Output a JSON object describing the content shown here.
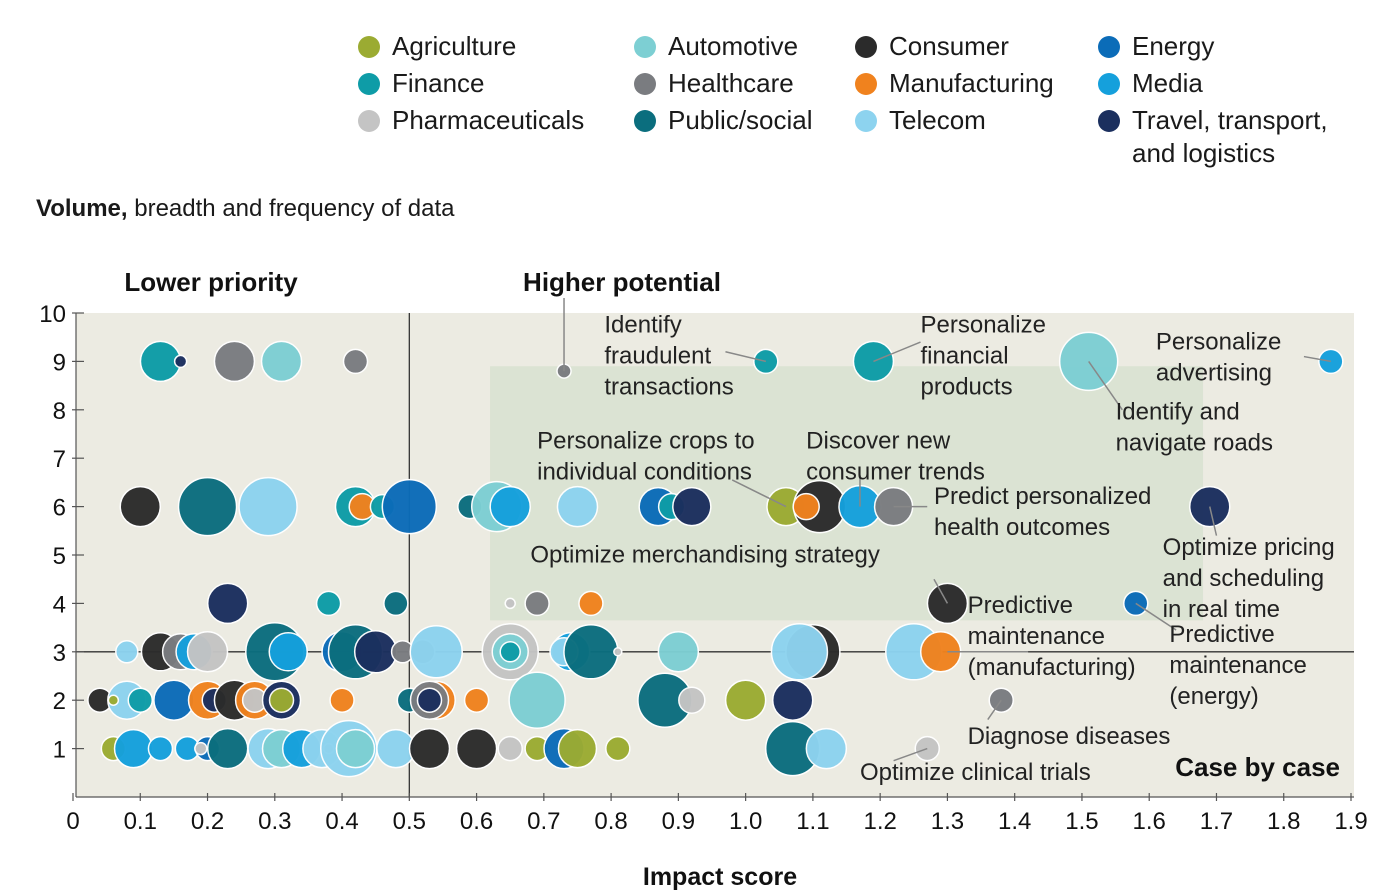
{
  "legend": [
    {
      "name": "Agriculture",
      "color": "#9bab32"
    },
    {
      "name": "Automotive",
      "color": "#7dcfd3"
    },
    {
      "name": "Consumer",
      "color": "#2b2b2b"
    },
    {
      "name": "Energy",
      "color": "#0b6cb8"
    },
    {
      "name": "Finance",
      "color": "#0e9ca7"
    },
    {
      "name": "Healthcare",
      "color": "#7a7c80"
    },
    {
      "name": "Manufacturing",
      "color": "#f0821e"
    },
    {
      "name": "Media",
      "color": "#15a0dc"
    },
    {
      "name": "Pharmaceuticals",
      "color": "#c4c4c4"
    },
    {
      "name": "Public/social",
      "color": "#0b6e7e"
    },
    {
      "name": "Telecom",
      "color": "#8dd3ef"
    },
    {
      "name": "Travel, transport, and logistics",
      "color": "#1b2f5e",
      "lines": [
        "Travel, transport,",
        "and logistics"
      ]
    }
  ],
  "chart_data": {
    "type": "scatter",
    "title": "",
    "ylabel_bold": "Volume,",
    "ylabel_rest": " breadth and frequency of data",
    "xlabel": "Impact score",
    "xlim": [
      0,
      1.9
    ],
    "ylim": [
      0,
      10
    ],
    "x_ticks": [
      "0",
      "0.1",
      "0.2",
      "0.3",
      "0.4",
      "0.5",
      "0.6",
      "0.7",
      "0.8",
      "0.9",
      "1.0",
      "1.1",
      "1.2",
      "1.3",
      "1.4",
      "1.5",
      "1.6",
      "1.7",
      "1.8",
      "1.9"
    ],
    "y_ticks": [
      "1",
      "2",
      "3",
      "4",
      "5",
      "6",
      "7",
      "8",
      "9",
      "10"
    ],
    "quadrant_labels": {
      "top_left": "Lower priority",
      "top_right": "Higher potential",
      "bottom_right": "Case by case"
    },
    "reference_lines": {
      "x": 0.5,
      "y": 3
    },
    "points": [
      {
        "x": 0.13,
        "y": 9,
        "r": 20,
        "c": "Finance"
      },
      {
        "x": 0.16,
        "y": 9,
        "r": 6,
        "c": "Travel, transport, and logistics"
      },
      {
        "x": 0.24,
        "y": 9,
        "r": 20,
        "c": "Healthcare"
      },
      {
        "x": 0.31,
        "y": 9,
        "r": 20,
        "c": "Automotive"
      },
      {
        "x": 0.42,
        "y": 9,
        "r": 12,
        "c": "Healthcare"
      },
      {
        "x": 0.1,
        "y": 6,
        "r": 20,
        "c": "Consumer"
      },
      {
        "x": 0.2,
        "y": 6,
        "r": 29,
        "c": "Public/social"
      },
      {
        "x": 0.29,
        "y": 6,
        "r": 29,
        "c": "Telecom"
      },
      {
        "x": 0.42,
        "y": 6,
        "r": 20,
        "c": "Finance"
      },
      {
        "x": 0.43,
        "y": 6,
        "r": 13,
        "c": "Manufacturing"
      },
      {
        "x": 0.46,
        "y": 6,
        "r": 12,
        "c": "Finance"
      },
      {
        "x": 0.5,
        "y": 6,
        "r": 27,
        "c": "Energy"
      },
      {
        "x": 0.59,
        "y": 6,
        "r": 12,
        "c": "Public/social"
      },
      {
        "x": 0.63,
        "y": 6,
        "r": 25,
        "c": "Automotive"
      },
      {
        "x": 0.65,
        "y": 6,
        "r": 20,
        "c": "Media"
      },
      {
        "x": 0.75,
        "y": 6,
        "r": 20,
        "c": "Telecom"
      },
      {
        "x": 0.87,
        "y": 6,
        "r": 19,
        "c": "Energy"
      },
      {
        "x": 0.89,
        "y": 6,
        "r": 13,
        "c": "Finance"
      },
      {
        "x": 0.92,
        "y": 6,
        "r": 19,
        "c": "Travel, transport, and logistics"
      },
      {
        "x": 1.06,
        "y": 6,
        "r": 19,
        "c": "Agriculture"
      },
      {
        "x": 1.11,
        "y": 6,
        "r": 26,
        "c": "Consumer"
      },
      {
        "x": 1.09,
        "y": 6,
        "r": 13,
        "c": "Manufacturing"
      },
      {
        "x": 1.17,
        "y": 6,
        "r": 21,
        "c": "Media"
      },
      {
        "x": 1.22,
        "y": 6,
        "r": 19,
        "c": "Healthcare"
      },
      {
        "x": 1.69,
        "y": 6,
        "r": 20,
        "c": "Travel, transport, and logistics"
      },
      {
        "x": 1.03,
        "y": 9,
        "r": 12,
        "c": "Finance"
      },
      {
        "x": 1.19,
        "y": 9,
        "r": 20,
        "c": "Finance"
      },
      {
        "x": 1.51,
        "y": 9,
        "r": 29,
        "c": "Automotive"
      },
      {
        "x": 1.87,
        "y": 9,
        "r": 12,
        "c": "Media"
      },
      {
        "x": 0.73,
        "y": 8.8,
        "r": 7,
        "c": "Healthcare"
      },
      {
        "x": 0.23,
        "y": 4,
        "r": 20,
        "c": "Travel, transport, and logistics"
      },
      {
        "x": 0.38,
        "y": 4,
        "r": 12,
        "c": "Finance"
      },
      {
        "x": 0.48,
        "y": 4,
        "r": 12,
        "c": "Public/social"
      },
      {
        "x": 0.65,
        "y": 4,
        "r": 5,
        "c": "Pharmaceuticals"
      },
      {
        "x": 0.69,
        "y": 4,
        "r": 12,
        "c": "Healthcare"
      },
      {
        "x": 0.77,
        "y": 4,
        "r": 12,
        "c": "Manufacturing"
      },
      {
        "x": 1.3,
        "y": 4,
        "r": 20,
        "c": "Consumer"
      },
      {
        "x": 1.58,
        "y": 4,
        "r": 12,
        "c": "Energy"
      },
      {
        "x": 0.08,
        "y": 3,
        "r": 11,
        "c": "Telecom"
      },
      {
        "x": 0.13,
        "y": 3,
        "r": 19,
        "c": "Consumer"
      },
      {
        "x": 0.16,
        "y": 3,
        "r": 18,
        "c": "Healthcare"
      },
      {
        "x": 0.18,
        "y": 3,
        "r": 18,
        "c": "Media"
      },
      {
        "x": 0.2,
        "y": 3,
        "r": 20,
        "c": "Pharmaceuticals"
      },
      {
        "x": 0.3,
        "y": 3,
        "r": 29,
        "c": "Public/social"
      },
      {
        "x": 0.32,
        "y": 3,
        "r": 19,
        "c": "Media"
      },
      {
        "x": 0.4,
        "y": 3,
        "r": 20,
        "c": "Energy"
      },
      {
        "x": 0.42,
        "y": 3,
        "r": 27,
        "c": "Public/social"
      },
      {
        "x": 0.45,
        "y": 3,
        "r": 21,
        "c": "Travel, transport, and logistics"
      },
      {
        "x": 0.49,
        "y": 3,
        "r": 11,
        "c": "Healthcare"
      },
      {
        "x": 0.52,
        "y": 3,
        "r": 12,
        "c": "Healthcare"
      },
      {
        "x": 0.54,
        "y": 3,
        "r": 26,
        "c": "Telecom"
      },
      {
        "x": 0.65,
        "y": 3,
        "r": 28,
        "c": "Pharmaceuticals"
      },
      {
        "x": 0.65,
        "y": 3,
        "r": 18,
        "c": "Automotive"
      },
      {
        "x": 0.65,
        "y": 3,
        "r": 10,
        "c": "Finance"
      },
      {
        "x": 0.74,
        "y": 3,
        "r": 19,
        "c": "Media"
      },
      {
        "x": 0.73,
        "y": 3,
        "r": 14,
        "c": "Telecom"
      },
      {
        "x": 0.77,
        "y": 3,
        "r": 27,
        "c": "Public/social"
      },
      {
        "x": 0.81,
        "y": 3,
        "r": 4,
        "c": "Pharmaceuticals"
      },
      {
        "x": 0.9,
        "y": 3,
        "r": 20,
        "c": "Automotive"
      },
      {
        "x": 1.1,
        "y": 3,
        "r": 27,
        "c": "Consumer"
      },
      {
        "x": 1.08,
        "y": 3,
        "r": 28,
        "c": "Telecom"
      },
      {
        "x": 1.25,
        "y": 3,
        "r": 28,
        "c": "Telecom"
      },
      {
        "x": 1.29,
        "y": 3,
        "r": 20,
        "c": "Manufacturing"
      },
      {
        "x": 0.04,
        "y": 2,
        "r": 12,
        "c": "Consumer"
      },
      {
        "x": 0.08,
        "y": 2,
        "r": 19,
        "c": "Telecom"
      },
      {
        "x": 0.06,
        "y": 2,
        "r": 5,
        "c": "Agriculture"
      },
      {
        "x": 0.1,
        "y": 2,
        "r": 12,
        "c": "Finance"
      },
      {
        "x": 0.15,
        "y": 2,
        "r": 20,
        "c": "Energy"
      },
      {
        "x": 0.2,
        "y": 2,
        "r": 19,
        "c": "Manufacturing"
      },
      {
        "x": 0.21,
        "y": 2,
        "r": 12,
        "c": "Travel, transport, and logistics"
      },
      {
        "x": 0.24,
        "y": 2,
        "r": 20,
        "c": "Consumer"
      },
      {
        "x": 0.27,
        "y": 2,
        "r": 19,
        "c": "Manufacturing"
      },
      {
        "x": 0.27,
        "y": 2,
        "r": 12,
        "c": "Pharmaceuticals"
      },
      {
        "x": 0.31,
        "y": 2,
        "r": 19,
        "c": "Travel, transport, and logistics"
      },
      {
        "x": 0.31,
        "y": 2,
        "r": 12,
        "c": "Agriculture"
      },
      {
        "x": 0.4,
        "y": 2,
        "r": 12,
        "c": "Manufacturing"
      },
      {
        "x": 0.5,
        "y": 2,
        "r": 12,
        "c": "Public/social"
      },
      {
        "x": 0.54,
        "y": 2,
        "r": 19,
        "c": "Manufacturing"
      },
      {
        "x": 0.53,
        "y": 2,
        "r": 19,
        "c": "Healthcare"
      },
      {
        "x": 0.53,
        "y": 2,
        "r": 12,
        "c": "Travel, transport, and logistics"
      },
      {
        "x": 0.6,
        "y": 2,
        "r": 12,
        "c": "Manufacturing"
      },
      {
        "x": 0.69,
        "y": 2,
        "r": 28,
        "c": "Automotive"
      },
      {
        "x": 0.88,
        "y": 2,
        "r": 27,
        "c": "Public/social"
      },
      {
        "x": 0.92,
        "y": 2,
        "r": 13,
        "c": "Pharmaceuticals"
      },
      {
        "x": 1.0,
        "y": 2,
        "r": 20,
        "c": "Agriculture"
      },
      {
        "x": 1.07,
        "y": 2,
        "r": 20,
        "c": "Travel, transport, and logistics"
      },
      {
        "x": 1.38,
        "y": 2,
        "r": 12,
        "c": "Healthcare"
      },
      {
        "x": 0.06,
        "y": 1,
        "r": 12,
        "c": "Agriculture"
      },
      {
        "x": 0.09,
        "y": 1,
        "r": 19,
        "c": "Media"
      },
      {
        "x": 0.13,
        "y": 1,
        "r": 12,
        "c": "Media"
      },
      {
        "x": 0.17,
        "y": 1,
        "r": 12,
        "c": "Media"
      },
      {
        "x": 0.2,
        "y": 1,
        "r": 12,
        "c": "Energy"
      },
      {
        "x": 0.19,
        "y": 1,
        "r": 6,
        "c": "Pharmaceuticals"
      },
      {
        "x": 0.23,
        "y": 1,
        "r": 20,
        "c": "Public/social"
      },
      {
        "x": 0.29,
        "y": 1,
        "r": 20,
        "c": "Telecom"
      },
      {
        "x": 0.31,
        "y": 1,
        "r": 19,
        "c": "Automotive"
      },
      {
        "x": 0.34,
        "y": 1,
        "r": 19,
        "c": "Media"
      },
      {
        "x": 0.37,
        "y": 1,
        "r": 19,
        "c": "Telecom"
      },
      {
        "x": 0.38,
        "y": 1,
        "r": 5,
        "c": "Pharmaceuticals"
      },
      {
        "x": 0.41,
        "y": 1,
        "r": 28,
        "c": "Telecom"
      },
      {
        "x": 0.42,
        "y": 1,
        "r": 19,
        "c": "Automotive"
      },
      {
        "x": 0.48,
        "y": 1,
        "r": 19,
        "c": "Telecom"
      },
      {
        "x": 0.53,
        "y": 1,
        "r": 20,
        "c": "Consumer"
      },
      {
        "x": 0.6,
        "y": 1,
        "r": 20,
        "c": "Consumer"
      },
      {
        "x": 0.65,
        "y": 1,
        "r": 12,
        "c": "Pharmaceuticals"
      },
      {
        "x": 0.69,
        "y": 1,
        "r": 12,
        "c": "Agriculture"
      },
      {
        "x": 0.73,
        "y": 1,
        "r": 20,
        "c": "Energy"
      },
      {
        "x": 0.75,
        "y": 1,
        "r": 19,
        "c": "Agriculture"
      },
      {
        "x": 0.81,
        "y": 1,
        "r": 12,
        "c": "Agriculture"
      },
      {
        "x": 1.07,
        "y": 1,
        "r": 27,
        "c": "Public/social"
      },
      {
        "x": 1.12,
        "y": 1,
        "r": 20,
        "c": "Telecom"
      },
      {
        "x": 1.27,
        "y": 1,
        "r": 12,
        "c": "Pharmaceuticals"
      }
    ],
    "annotations": [
      {
        "lines": [
          "Identify",
          "fraudulent",
          "transactions"
        ],
        "x": 0.79,
        "y": 9.6,
        "anchor": "start",
        "target": [
          1.03,
          9
        ],
        "from": [
          0.97,
          9.2
        ]
      },
      {
        "lines": [
          "Personalize",
          "financial",
          "products"
        ],
        "x": 1.26,
        "y": 9.6,
        "anchor": "start",
        "target": [
          1.19,
          9
        ],
        "from": [
          1.26,
          9.4
        ]
      },
      {
        "lines": [
          "Personalize",
          "advertising"
        ],
        "x": 1.61,
        "y": 9.25,
        "anchor": "start",
        "target": [
          1.87,
          9
        ],
        "from": [
          1.83,
          9.1
        ]
      },
      {
        "lines": [
          "Identify and",
          "navigate roads"
        ],
        "x": 1.55,
        "y": 7.8,
        "anchor": "start",
        "target": [
          1.51,
          9
        ],
        "from": [
          1.56,
          8.0
        ]
      },
      {
        "lines": [
          "Personalize crops to",
          "individual conditions"
        ],
        "x": 0.69,
        "y": 7.2,
        "anchor": "start",
        "target": [
          1.06,
          6
        ],
        "from": [
          0.98,
          6.55
        ]
      },
      {
        "lines": [
          "Discover new",
          "consumer trends"
        ],
        "x": 1.09,
        "y": 7.2,
        "anchor": "start",
        "target": [
          1.17,
          6
        ],
        "from": [
          1.17,
          6.65
        ]
      },
      {
        "lines": [
          "Predict personalized",
          "health outcomes"
        ],
        "x": 1.28,
        "y": 6.05,
        "anchor": "start",
        "target": [
          1.22,
          6
        ],
        "from": [
          1.27,
          6.0
        ]
      },
      {
        "lines": [
          "Optimize merchandising strategy"
        ],
        "x": 0.68,
        "y": 4.85,
        "anchor": "start",
        "target": [
          1.3,
          4
        ],
        "from": [
          1.28,
          4.5
        ]
      },
      {
        "lines": [
          "Optimize pricing",
          "and scheduling",
          "in real time"
        ],
        "x": 1.62,
        "y": 5.0,
        "anchor": "start",
        "target": [
          1.69,
          6
        ],
        "from": [
          1.7,
          5.4
        ]
      },
      {
        "lines": [
          "Predictive",
          "maintenance",
          "(manufacturing)"
        ],
        "x": 1.33,
        "y": 3.8,
        "anchor": "start",
        "target": [
          1.3,
          3
        ],
        "from": [
          1.42,
          3.0
        ]
      },
      {
        "lines": [
          "Predictive",
          "maintenance",
          "(energy)"
        ],
        "x": 1.63,
        "y": 3.2,
        "anchor": "start",
        "target": [
          1.58,
          4
        ],
        "from": [
          1.64,
          3.45
        ]
      },
      {
        "lines": [
          "Diagnose diseases"
        ],
        "x": 1.33,
        "y": 1.1,
        "anchor": "start",
        "target": [
          1.38,
          2
        ],
        "from": [
          1.36,
          1.6
        ]
      },
      {
        "lines": [
          "Optimize clinical trials"
        ],
        "x": 1.17,
        "y": 0.35,
        "anchor": "start",
        "target": [
          1.27,
          1
        ],
        "from": [
          1.22,
          0.75
        ]
      }
    ],
    "higher_potential_pointer": {
      "from": [
        0.73,
        10.1
      ],
      "to": [
        0.73,
        8.8
      ]
    },
    "highlight_region": {
      "x0": 0.62,
      "x1": 1.68,
      "y0": 3.65,
      "y1": 8.9
    }
  }
}
